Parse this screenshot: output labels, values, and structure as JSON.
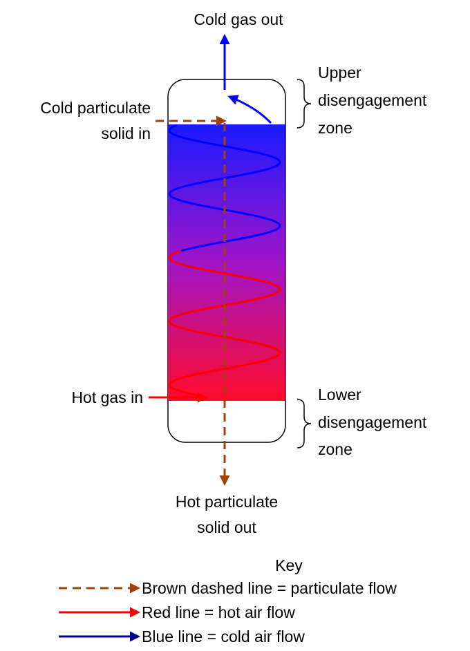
{
  "title": "Cold gas out",
  "labels": {
    "upper_zone": [
      "Upper",
      "disengagement",
      "zone"
    ],
    "cold_in": [
      "Cold particulate",
      "solid in"
    ],
    "hot_gas_in": "Hot gas in",
    "lower_zone": [
      "Lower",
      "disengagement",
      "zone"
    ],
    "hot_out": [
      "Hot particulate",
      "solid out"
    ]
  },
  "key": {
    "title": "Key",
    "items": [
      "Brown dashed line = particulate flow",
      "Red line = hot air flow",
      "Blue line = cold air flow"
    ]
  }
}
